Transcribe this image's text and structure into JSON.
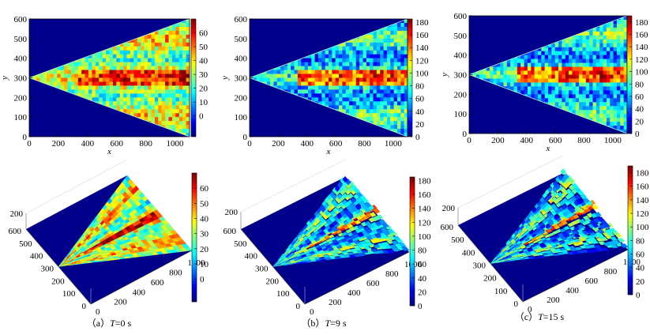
{
  "colormap": {
    "name": "jet",
    "stops": [
      "#00007f",
      "#0000ff",
      "#007fff",
      "#00ffff",
      "#7fff7f",
      "#ffff00",
      "#ff7f00",
      "#ff0000",
      "#7f0000"
    ],
    "background": "#00008b"
  },
  "chart_data": [
    {
      "id": "a",
      "type": "heatmap",
      "view": "2d",
      "time_s": 0,
      "xlabel": "x",
      "ylabel": "y",
      "xlim": [
        0,
        1100
      ],
      "ylim": [
        0,
        600
      ],
      "xticks": [
        "0",
        "200",
        "400",
        "600",
        "800",
        "1000"
      ],
      "yticks": [
        "0",
        "100",
        "200",
        "300",
        "400",
        "500",
        "600"
      ],
      "colorbar": {
        "range": [
          -15,
          70
        ],
        "ticks": [
          "0",
          "10",
          "20",
          "30",
          "40",
          "50",
          "60"
        ],
        "tick_values": [
          0,
          10,
          20,
          30,
          40,
          50,
          60
        ]
      }
    },
    {
      "id": "b",
      "type": "heatmap",
      "view": "2d",
      "time_s": 9,
      "xlabel": "x",
      "ylabel": "y",
      "xlim": [
        0,
        1100
      ],
      "ylim": [
        0,
        600
      ],
      "xticks": [
        "0",
        "200",
        "400",
        "600",
        "800",
        "1000"
      ],
      "yticks": [
        "0",
        "100",
        "200",
        "300",
        "400",
        "500",
        "600"
      ],
      "colorbar": {
        "range": [
          0,
          185
        ],
        "ticks": [
          "0",
          "20",
          "40",
          "60",
          "80",
          "100",
          "120",
          "140",
          "160",
          "180"
        ],
        "tick_values": [
          0,
          20,
          40,
          60,
          80,
          100,
          120,
          140,
          160,
          180
        ]
      }
    },
    {
      "id": "c",
      "type": "heatmap",
      "view": "2d",
      "time_s": 15,
      "xlabel": "x",
      "ylabel": "y",
      "xlim": [
        0,
        1100
      ],
      "ylim": [
        0,
        600
      ],
      "xticks": [
        "0",
        "200",
        "400",
        "600",
        "800",
        "1000"
      ],
      "yticks": [
        "0",
        "100",
        "200",
        "300",
        "400",
        "500",
        "600"
      ],
      "colorbar": {
        "range": [
          0,
          190
        ],
        "ticks": [
          "0",
          "20",
          "40",
          "60",
          "80",
          "100",
          "120",
          "140",
          "160",
          "180"
        ],
        "tick_values": [
          0,
          20,
          40,
          60,
          80,
          100,
          120,
          140,
          160,
          180
        ]
      }
    },
    {
      "id": "a3",
      "type": "surface",
      "view": "3d",
      "time_s": 0,
      "x_ticks": [
        "0",
        "200",
        "400",
        "600",
        "800",
        "1000"
      ],
      "y_ticks": [
        "0",
        "100",
        "200",
        "300",
        "400",
        "500",
        "600"
      ],
      "z_ticks": [
        "200"
      ],
      "colorbar": {
        "range": [
          -15,
          70
        ],
        "ticks": [
          "0",
          "10",
          "20",
          "30",
          "40",
          "50",
          "60"
        ],
        "tick_values": [
          0,
          10,
          20,
          30,
          40,
          50,
          60
        ]
      }
    },
    {
      "id": "b3",
      "type": "surface",
      "view": "3d",
      "time_s": 9,
      "x_ticks": [
        "0",
        "200",
        "400",
        "600",
        "800",
        "1000"
      ],
      "y_ticks": [
        "0",
        "100",
        "200",
        "300",
        "400",
        "500",
        "600"
      ],
      "z_ticks": [
        "200"
      ],
      "colorbar": {
        "range": [
          0,
          185
        ],
        "ticks": [
          "0",
          "20",
          "40",
          "60",
          "80",
          "100",
          "120",
          "140",
          "160",
          "180"
        ],
        "tick_values": [
          0,
          20,
          40,
          60,
          80,
          100,
          120,
          140,
          160,
          180
        ]
      }
    },
    {
      "id": "c3",
      "type": "surface",
      "view": "3d",
      "time_s": 15,
      "x_ticks": [
        "0",
        "200",
        "400",
        "600",
        "800",
        "1000"
      ],
      "y_ticks": [
        "0",
        "100",
        "200",
        "300",
        "400",
        "500",
        "600"
      ],
      "z_ticks": [
        "200"
      ],
      "colorbar": {
        "range": [
          0,
          190
        ],
        "ticks": [
          "0",
          "20",
          "40",
          "60",
          "80",
          "100",
          "120",
          "140",
          "160",
          "180"
        ],
        "tick_values": [
          0,
          20,
          40,
          60,
          80,
          100,
          120,
          140,
          160,
          180
        ]
      }
    }
  ],
  "captions": [
    {
      "prefix": "（a）",
      "var": "T",
      "value": "=0 s"
    },
    {
      "prefix": "（b）",
      "var": "T",
      "value": "=9 s"
    },
    {
      "prefix": "（c）",
      "var": "T",
      "value": "=15 s"
    }
  ]
}
